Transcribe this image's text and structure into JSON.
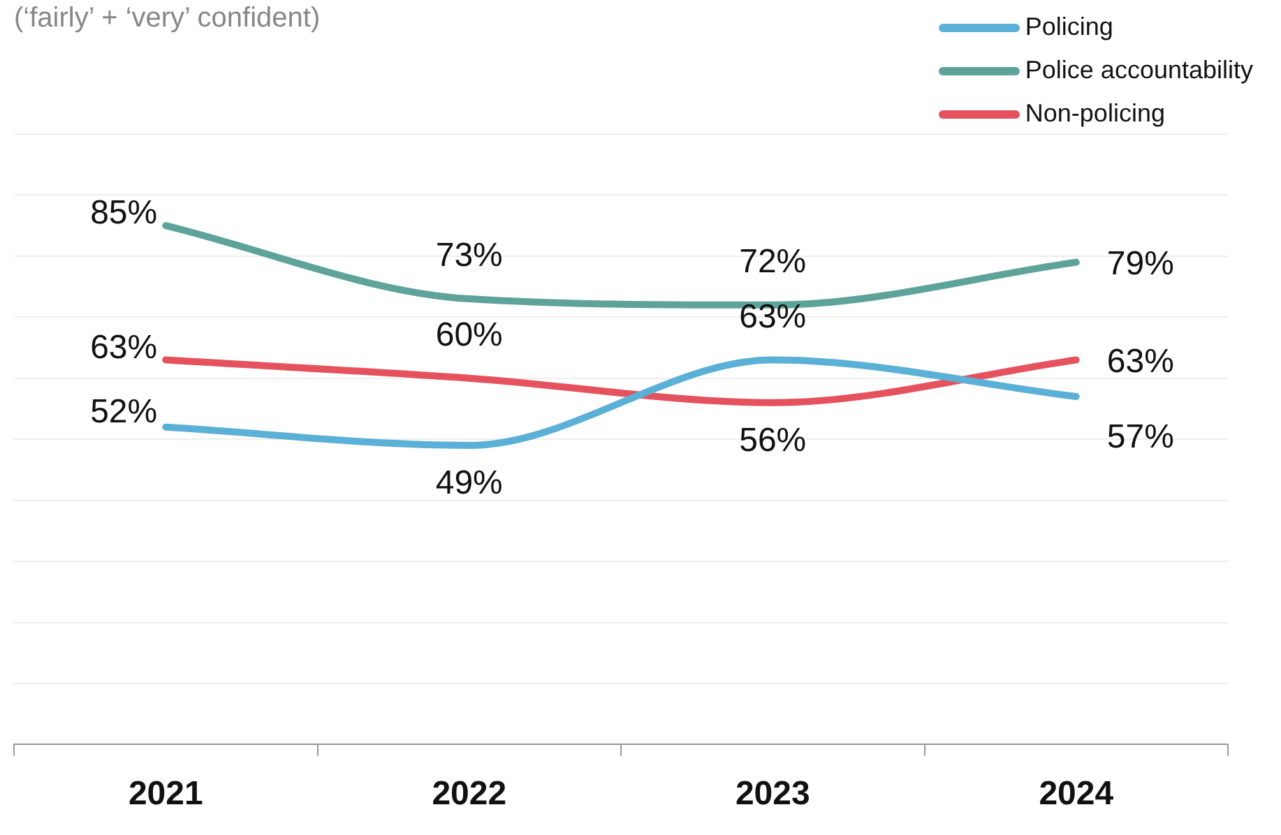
{
  "chart_data": {
    "type": "line",
    "subtitle": "(‘fairly’ + ‘very’ confident)",
    "categories": [
      "2021",
      "2022",
      "2023",
      "2024"
    ],
    "series": [
      {
        "name": "Policing",
        "color": "#5ab0d6",
        "values": [
          52,
          49,
          63,
          57
        ],
        "value_labels": [
          "52%",
          "49%",
          "63%",
          "57%"
        ]
      },
      {
        "name": "Police accountability",
        "color": "#5ea39a",
        "values": [
          85,
          73,
          72,
          79
        ],
        "value_labels": [
          "85%",
          "73%",
          "72%",
          "79%"
        ]
      },
      {
        "name": "Non-policing",
        "color": "#e5525d",
        "values": [
          63,
          60,
          56,
          63
        ],
        "value_labels": [
          "63%",
          "60%",
          "56%",
          "63%"
        ]
      }
    ],
    "ylim": [
      0,
      100
    ],
    "yticks": [
      {
        "value": 0,
        "label": null
      },
      {
        "value": 10,
        "label": null
      },
      {
        "value": 20,
        "label": null
      },
      {
        "value": 30,
        "label": null
      },
      {
        "value": 40,
        "label": null
      },
      {
        "value": 50,
        "label": null
      },
      {
        "value": 60,
        "label": null
      },
      {
        "value": 70,
        "label": null
      },
      {
        "value": 80,
        "label": null
      },
      {
        "value": 90,
        "label": null
      },
      {
        "value": 100,
        "label": null
      }
    ],
    "tick_labels": "x",
    "grid": "y",
    "legend": "top right",
    "marker": "none",
    "line_style": "solid"
  }
}
